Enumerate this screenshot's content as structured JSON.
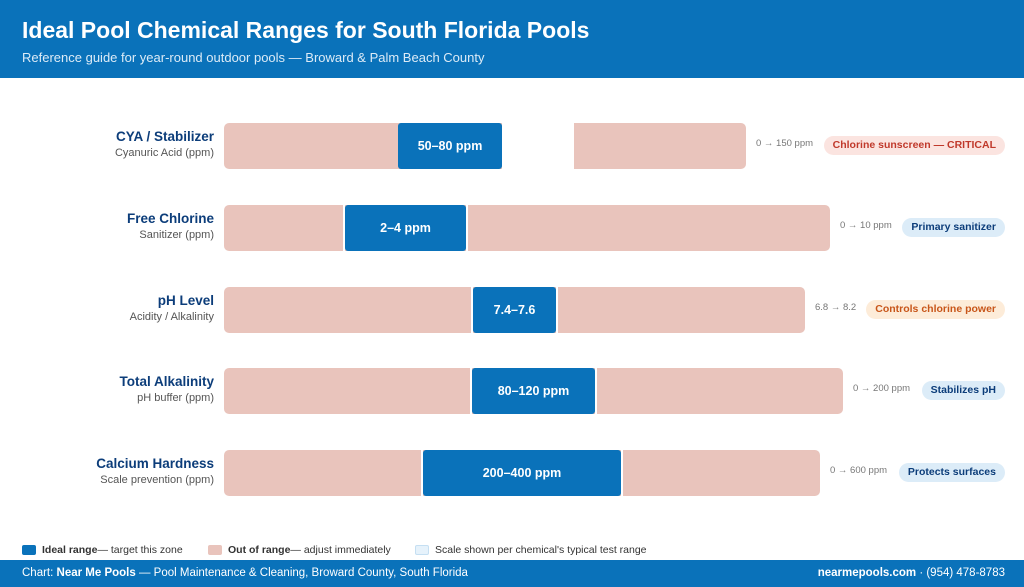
{
  "header": {
    "title": "Ideal Pool Chemical Ranges for South Florida Pools",
    "subtitle": "Reference guide for year-round outdoor pools — Broward & Palm Beach County"
  },
  "chart_data": {
    "type": "bar",
    "title": "Ideal Pool Chemical Ranges for South Florida Pools",
    "subtitle": "Reference guide for year-round outdoor pools — Broward & Palm Beach County",
    "rows": [
      {
        "name": "CYA / Stabilizer",
        "sublabel": "Cyanuric Acid (ppm)",
        "scale_min": 0,
        "scale_max": 150,
        "ideal_min": 50,
        "ideal_max": 80,
        "ideal_label": "50–80 ppm",
        "scale_label": "0 → 150 ppm",
        "badge": "Chlorine sunscreen — CRITICAL",
        "badge_color": "#c0392b"
      },
      {
        "name": "Free Chlorine",
        "sublabel": "Sanitizer (ppm)",
        "scale_min": 0,
        "scale_max": 10,
        "ideal_min": 2,
        "ideal_max": 4,
        "ideal_label": "2–4 ppm",
        "scale_label": "0 → 10 ppm",
        "badge": "Primary sanitizer",
        "badge_color": "#0c3d7a"
      },
      {
        "name": "pH Level",
        "sublabel": "Acidity / Alkalinity",
        "scale_min": 6.8,
        "scale_max": 8.2,
        "ideal_min": 7.4,
        "ideal_max": 7.6,
        "ideal_label": "7.4–7.6",
        "scale_label": "6.8 → 8.2",
        "badge": "Controls chlorine power",
        "badge_color": "#c8561a"
      },
      {
        "name": "Total Alkalinity",
        "sublabel": "pH buffer (ppm)",
        "scale_min": 0,
        "scale_max": 200,
        "ideal_min": 80,
        "ideal_max": 120,
        "ideal_label": "80–120 ppm",
        "scale_label": "0 → 200 ppm",
        "badge": "Stabilizes pH",
        "badge_color": "#0c3d7a"
      },
      {
        "name": "Calcium Hardness",
        "sublabel": "Scale prevention (ppm)",
        "scale_min": 0,
        "scale_max": 600,
        "ideal_min": 200,
        "ideal_max": 400,
        "ideal_label": "200–400 ppm",
        "scale_label": "0 → 600 ppm",
        "badge": "Protects surfaces",
        "badge_color": "#0c3d7a"
      }
    ],
    "legend": [
      {
        "label": "Ideal range",
        "desc": " — target this zone",
        "color": "#0a72ba"
      },
      {
        "label": "Out of range",
        "desc": " — adjust immediately",
        "color": "#e9c4bc"
      },
      {
        "label": "",
        "desc": "Scale shown per chemical's typical test range",
        "color": "#e6f2fb"
      }
    ]
  },
  "footer": {
    "prefix": "Chart: ",
    "brand": "Near Me Pools",
    "rest": " — Pool Maintenance & Cleaning, Broward County, South Florida",
    "site": "nearmepools.com",
    "phone": " · (954) 478-8783"
  }
}
